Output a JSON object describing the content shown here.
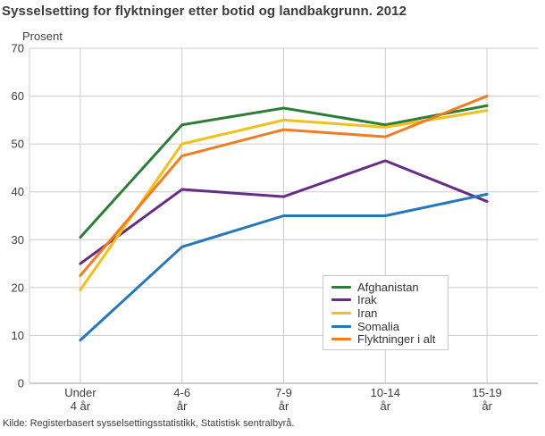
{
  "page": {
    "source": "Kilde: Registerbasert sysselsettingsstatistikk, Statistisk sentralbyrå."
  },
  "chart_data": {
    "type": "line",
    "title": "Sysselsetting for flyktninger etter botid og landbakgrunn. 2012",
    "ylabel": "Prosent",
    "xlabel": "",
    "categories": [
      "Under 4 år",
      "4-6 år",
      "7-9 år",
      "10-14 år",
      "15-19 år"
    ],
    "category_label_lines": [
      [
        "Under",
        "4 år"
      ],
      [
        "4-6",
        "år"
      ],
      [
        "7-9",
        "år"
      ],
      [
        "10-14",
        "år"
      ],
      [
        "15-19",
        "år"
      ]
    ],
    "ylim": [
      0,
      70
    ],
    "yticks": [
      0,
      10,
      20,
      30,
      40,
      50,
      60,
      70
    ],
    "grid": true,
    "legend_position": "inside-bottom-right",
    "series": [
      {
        "name": "Afghanistan",
        "color": "#2e7d36",
        "values": [
          30.5,
          54,
          57.5,
          54,
          58
        ]
      },
      {
        "name": "Irak",
        "color": "#662d86",
        "values": [
          25,
          40.5,
          39,
          46.5,
          38
        ]
      },
      {
        "name": "Iran",
        "color": "#efc01e",
        "values": [
          19.5,
          50,
          55,
          53.5,
          57
        ]
      },
      {
        "name": "Somalia",
        "color": "#2678b8",
        "values": [
          9,
          28.5,
          35,
          35,
          39.5
        ]
      },
      {
        "name": "Flyktninger i alt",
        "color": "#ef7d22",
        "values": [
          22.5,
          47.5,
          53,
          51.5,
          60
        ]
      }
    ]
  }
}
